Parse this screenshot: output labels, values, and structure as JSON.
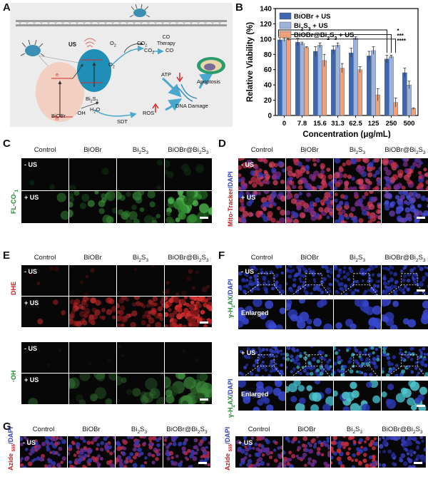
{
  "panels": {
    "A": "A",
    "B": "B",
    "C": "C",
    "D": "D",
    "E": "E",
    "F": "F",
    "G": "G"
  },
  "schematic": {
    "us": "US",
    "bi2s3": "Bi2S3",
    "biobr": "BiOBr",
    "o2_a": "O2",
    "co2_a": "CO2",
    "o2_b": "O2",
    "co2_b": "CO2",
    "co": "CO",
    "co_therapy": "CO\nTherapy",
    "atp": "ATP",
    "h2o": "H2O",
    "oh": "·OH",
    "sdt": "SDT",
    "ros": "ROS",
    "dna": "DNA Damage",
    "apoptosis": "Apoptosis",
    "e": "e",
    "h": "h",
    "colors": {
      "bg": "#ececec",
      "biobr": "#f2cfc0",
      "bi2s3": "#1f8fb8",
      "arrow": "#5fb6d6",
      "red": "#d22a2a"
    }
  },
  "chart_data": {
    "type": "bar",
    "ylabel": "Relative Viability (%)",
    "xlabel": "Concentration (μg/mL)",
    "ylim": [
      0,
      140
    ],
    "yticks": [
      0,
      20,
      40,
      60,
      80,
      100,
      120,
      140
    ],
    "categories": [
      "0",
      "7.8",
      "15.6",
      "31.3",
      "62.5",
      "125",
      "250",
      "500"
    ],
    "series": [
      {
        "name": "BiOBr + US",
        "color": "#3f67b0",
        "values": [
          99,
          96,
          84,
          86,
          82,
          78,
          74,
          56
        ],
        "errors": [
          3,
          5,
          6,
          5,
          6,
          6,
          5,
          6
        ]
      },
      {
        "name": "Bi2S3 + US",
        "color": "#9bb4de",
        "values": [
          99,
          94,
          92,
          92,
          101,
          85,
          77,
          40
        ],
        "errors": [
          2,
          2,
          3,
          3,
          2,
          5,
          2,
          5
        ]
      },
      {
        "name": "BiOBr@Bi2S3 + US",
        "color": "#f0a07a",
        "values": [
          100,
          89,
          72,
          62,
          60,
          27,
          17,
          9
        ],
        "errors": [
          2,
          1,
          8,
          6,
          4,
          8,
          6,
          1
        ]
      }
    ],
    "significance": [
      "*",
      "***",
      "****"
    ],
    "legend": "top-left"
  },
  "panel_c": {
    "cols": [
      "Control",
      "BiOBr",
      "Bi2S3",
      "BiOBr@Bi2S3"
    ],
    "rows": [
      "- US",
      "+ US"
    ],
    "ylabel": "FL-CO-1"
  },
  "panel_d": {
    "cols": [
      "Control",
      "BiOBr",
      "Bi2S3",
      "BiOBr@Bi2S3"
    ],
    "rows": [
      "- US",
      "+ US"
    ],
    "ylabel_red": "Mito-Tracker",
    "ylabel_blue": "/DAPI"
  },
  "panel_e": {
    "cols": [
      "Control",
      "BiOBr",
      "Bi2S3",
      "BiOBr@Bi2S3"
    ],
    "rows": [
      "- US",
      "+ US",
      "- US",
      "+ US"
    ],
    "ylabel_top": "DHE",
    "ylabel_bottom": "·OH"
  },
  "panel_f": {
    "cols": [
      "Control",
      "BiOBr",
      "Bi2S3",
      "BiOBr@Bi2S3"
    ],
    "rows": [
      "- US",
      "Enlarged",
      "+ US",
      "Enlarged"
    ],
    "ylabel_a": "γ-H2AX",
    "ylabel_b": "/DAPI"
  },
  "panel_g": {
    "cols": [
      "Control",
      "BiOBr",
      "Bi2S3",
      "BiOBr@Bi2S3"
    ],
    "left_row": "- US",
    "right_row": "+ US",
    "ylabel_red": "Azide 555",
    "ylabel_blue": "/DAPI"
  }
}
